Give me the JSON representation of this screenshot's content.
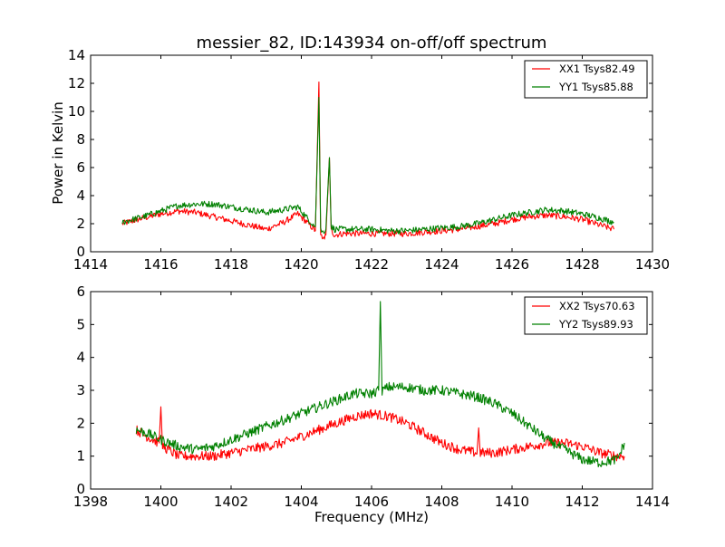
{
  "colors": {
    "xx": "#ff0000",
    "yy": "#008000",
    "axis": "#000000",
    "background": "#ffffff"
  },
  "chart_data": [
    {
      "type": "line",
      "title": "messier_82, ID:143934 on-off/off spectrum",
      "xlabel": "",
      "ylabel": "Power in Kelvin",
      "xlim": [
        1414,
        1430
      ],
      "ylim": [
        0,
        14
      ],
      "xticks": [
        "1414",
        "1416",
        "1418",
        "1420",
        "1422",
        "1424",
        "1426",
        "1428",
        "1430"
      ],
      "yticks": [
        "0",
        "2",
        "4",
        "6",
        "8",
        "10",
        "12",
        "14"
      ],
      "grid": false,
      "legend_position": "top-right",
      "series": [
        {
          "name": "XX1 Tsys82.49",
          "color": "#ff0000",
          "x": [
            1414.9,
            1415.5,
            1416.0,
            1416.5,
            1417.0,
            1417.5,
            1418.0,
            1418.5,
            1419.0,
            1419.5,
            1419.9,
            1420.2,
            1420.4,
            1420.5,
            1420.55,
            1420.6,
            1420.7,
            1420.8,
            1420.85,
            1420.95,
            1421.2,
            1421.6,
            1422.0,
            1422.5,
            1423.0,
            1423.5,
            1424.0,
            1424.5,
            1425.0,
            1425.5,
            1426.0,
            1426.5,
            1427.0,
            1427.5,
            1428.0,
            1428.5,
            1428.9
          ],
          "y": [
            2.0,
            2.4,
            2.7,
            2.9,
            2.8,
            2.5,
            2.2,
            1.9,
            1.6,
            2.1,
            2.7,
            2.0,
            1.5,
            12.1,
            1.3,
            0.8,
            1.2,
            6.7,
            1.5,
            1.2,
            1.3,
            1.3,
            1.3,
            1.3,
            1.3,
            1.4,
            1.5,
            1.6,
            1.8,
            2.0,
            2.3,
            2.5,
            2.6,
            2.5,
            2.3,
            1.9,
            1.6
          ]
        },
        {
          "name": "YY1 Tsys85.88",
          "color": "#008000",
          "x": [
            1414.9,
            1415.5,
            1416.0,
            1416.5,
            1417.0,
            1417.5,
            1418.0,
            1418.5,
            1419.0,
            1419.5,
            1419.9,
            1420.2,
            1420.4,
            1420.5,
            1420.55,
            1420.6,
            1420.7,
            1420.8,
            1420.85,
            1420.95,
            1421.2,
            1421.6,
            1422.0,
            1422.5,
            1423.0,
            1423.5,
            1424.0,
            1424.5,
            1425.0,
            1425.5,
            1426.0,
            1426.5,
            1427.0,
            1427.5,
            1428.0,
            1428.5,
            1428.9
          ],
          "y": [
            2.1,
            2.5,
            2.9,
            3.3,
            3.4,
            3.4,
            3.2,
            3.0,
            2.8,
            3.0,
            3.2,
            2.3,
            1.8,
            11.0,
            1.6,
            1.4,
            1.6,
            6.7,
            1.8,
            1.6,
            1.6,
            1.6,
            1.6,
            1.5,
            1.5,
            1.6,
            1.7,
            1.8,
            2.0,
            2.3,
            2.6,
            2.8,
            3.0,
            2.9,
            2.7,
            2.4,
            2.1
          ]
        }
      ]
    },
    {
      "type": "line",
      "title": "",
      "xlabel": "Frequency (MHz)",
      "ylabel": "",
      "xlim": [
        1398,
        1414
      ],
      "ylim": [
        0,
        6
      ],
      "xticks": [
        "1398",
        "1400",
        "1402",
        "1404",
        "1406",
        "1408",
        "1410",
        "1412",
        "1414"
      ],
      "yticks": [
        "0",
        "1",
        "2",
        "3",
        "4",
        "5",
        "6"
      ],
      "grid": false,
      "legend_position": "top-right",
      "series": [
        {
          "name": "XX2 Tsys70.63",
          "color": "#ff0000",
          "x": [
            1399.3,
            1399.6,
            1399.95,
            1400.0,
            1400.05,
            1400.5,
            1401.0,
            1401.5,
            1402.0,
            1402.5,
            1403.0,
            1403.5,
            1404.0,
            1404.5,
            1405.0,
            1405.5,
            1406.0,
            1406.5,
            1407.0,
            1407.5,
            1408.0,
            1408.5,
            1409.0,
            1409.05,
            1409.1,
            1409.5,
            1410.0,
            1410.5,
            1411.0,
            1411.5,
            1412.0,
            1412.5,
            1413.0,
            1413.2
          ],
          "y": [
            1.8,
            1.6,
            1.4,
            2.5,
            1.3,
            1.0,
            1.0,
            1.0,
            1.1,
            1.2,
            1.3,
            1.4,
            1.6,
            1.8,
            2.0,
            2.2,
            2.3,
            2.2,
            2.0,
            1.7,
            1.4,
            1.2,
            1.1,
            1.8,
            1.1,
            1.1,
            1.2,
            1.3,
            1.4,
            1.4,
            1.3,
            1.1,
            1.0,
            1.0
          ]
        },
        {
          "name": "YY2 Tsys89.93",
          "color": "#008000",
          "x": [
            1399.3,
            1399.6,
            1400.0,
            1400.5,
            1401.0,
            1401.5,
            1402.0,
            1402.5,
            1403.0,
            1403.5,
            1404.0,
            1404.5,
            1405.0,
            1405.5,
            1406.0,
            1406.2,
            1406.25,
            1406.3,
            1406.5,
            1407.0,
            1407.5,
            1408.0,
            1408.5,
            1409.0,
            1409.5,
            1410.0,
            1410.5,
            1411.0,
            1411.5,
            1412.0,
            1412.5,
            1413.0,
            1413.2
          ],
          "y": [
            1.8,
            1.7,
            1.5,
            1.3,
            1.2,
            1.3,
            1.5,
            1.7,
            1.9,
            2.1,
            2.3,
            2.5,
            2.7,
            2.9,
            2.9,
            3.0,
            5.7,
            3.0,
            3.1,
            3.1,
            3.0,
            3.0,
            2.9,
            2.8,
            2.6,
            2.3,
            1.9,
            1.5,
            1.2,
            0.9,
            0.8,
            0.9,
            1.4
          ]
        }
      ]
    }
  ]
}
